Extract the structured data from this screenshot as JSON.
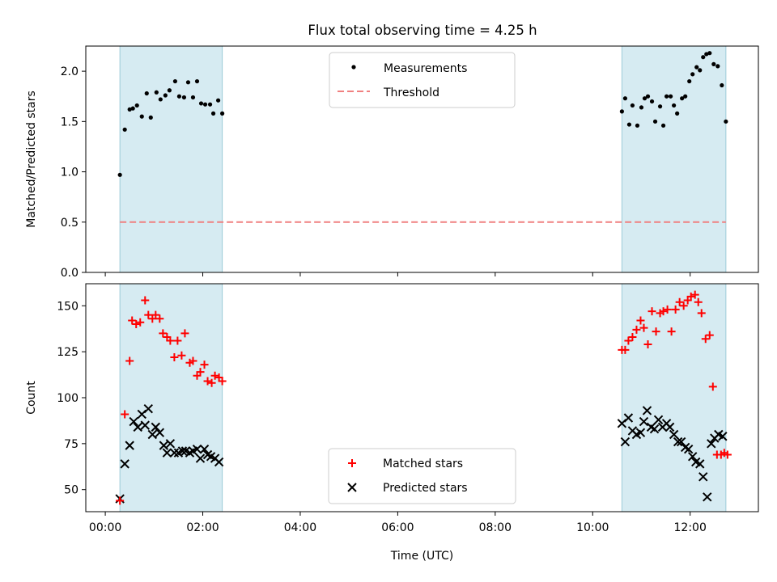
{
  "title": "Flux total observing time = 4.25 h",
  "colors": {
    "band": "#add8e6",
    "measurement": "#000000",
    "threshold": "#f08080",
    "matched": "#ff0000",
    "predicted": "#000000"
  },
  "chart_data": [
    {
      "type": "scatter",
      "panel": "top",
      "ylabel": "Matched/Predicted stars",
      "ylim": [
        0,
        2.25
      ],
      "yticks": [
        0.0,
        0.5,
        1.0,
        1.5,
        2.0
      ],
      "ytick_labels": [
        "0.0",
        "0.5",
        "1.0",
        "1.5",
        "2.0"
      ],
      "legend": {
        "placement": "upper center",
        "entries": [
          "Measurements",
          "Threshold"
        ]
      },
      "shaded_intervals": [
        [
          "00:18",
          "02:24"
        ],
        [
          "10:36",
          "12:44"
        ]
      ],
      "threshold": {
        "name": "Threshold",
        "value": 0.5,
        "x_range": [
          "00:18",
          "12:44"
        ]
      },
      "series": [
        {
          "name": "Measurements",
          "x": [
            "00:18",
            "00:24",
            "00:30",
            "00:34",
            "00:39",
            "00:45",
            "00:51",
            "00:56",
            "01:03",
            "01:08",
            "01:14",
            "01:19",
            "01:26",
            "01:31",
            "01:37",
            "01:42",
            "01:48",
            "01:53",
            "01:58",
            "02:03",
            "02:09",
            "02:13",
            "02:19",
            "02:24",
            "10:36",
            "10:40",
            "10:45",
            "10:49",
            "10:55",
            "11:00",
            "11:04",
            "11:08",
            "11:13",
            "11:17",
            "11:23",
            "11:27",
            "11:31",
            "11:36",
            "11:40",
            "11:44",
            "11:50",
            "11:54",
            "11:59",
            "12:03",
            "12:08",
            "12:12",
            "12:16",
            "12:20",
            "12:24",
            "12:29",
            "12:34",
            "12:39",
            "12:44"
          ],
          "y": [
            0.97,
            1.42,
            1.62,
            1.63,
            1.66,
            1.55,
            1.78,
            1.54,
            1.79,
            1.72,
            1.76,
            1.81,
            1.9,
            1.75,
            1.74,
            1.89,
            1.74,
            1.9,
            1.68,
            1.67,
            1.67,
            1.58,
            1.71,
            1.58,
            1.6,
            1.73,
            1.47,
            1.66,
            1.46,
            1.64,
            1.73,
            1.75,
            1.7,
            1.5,
            1.65,
            1.46,
            1.75,
            1.75,
            1.66,
            1.58,
            1.73,
            1.75,
            1.9,
            1.97,
            2.04,
            2.01,
            2.14,
            2.17,
            2.18,
            2.07,
            2.05,
            1.86,
            1.5
          ]
        }
      ]
    },
    {
      "type": "scatter",
      "panel": "bottom",
      "xlabel": "Time (UTC)",
      "ylabel": "Count",
      "xlim": [
        "-00:24",
        "13:24"
      ],
      "xticks": [
        "00:00",
        "02:00",
        "04:00",
        "06:00",
        "08:00",
        "10:00",
        "12:00"
      ],
      "ylim": [
        38,
        162
      ],
      "yticks": [
        50,
        75,
        100,
        125,
        150
      ],
      "ytick_labels": [
        "50",
        "75",
        "100",
        "125",
        "150"
      ],
      "legend": {
        "placement": "lower center",
        "entries": [
          "Matched stars",
          "Predicted stars"
        ]
      },
      "shaded_intervals": [
        [
          "00:18",
          "02:24"
        ],
        [
          "10:36",
          "12:44"
        ]
      ],
      "series": [
        {
          "name": "Matched stars",
          "x": [
            "00:18",
            "00:24",
            "00:30",
            "00:33",
            "00:38",
            "00:43",
            "00:49",
            "00:53",
            "00:58",
            "01:02",
            "01:07",
            "01:11",
            "01:16",
            "01:20",
            "01:25",
            "01:29",
            "01:34",
            "01:38",
            "01:44",
            "01:48",
            "01:53",
            "01:57",
            "02:02",
            "02:06",
            "02:11",
            "02:15",
            "02:20",
            "02:24",
            "10:36",
            "10:40",
            "10:44",
            "10:49",
            "10:54",
            "10:59",
            "11:03",
            "11:08",
            "11:13",
            "11:18",
            "11:23",
            "11:27",
            "11:32",
            "11:37",
            "11:42",
            "11:47",
            "11:52",
            "11:57",
            "12:01",
            "12:06",
            "12:10",
            "12:14",
            "12:19",
            "12:24",
            "12:28",
            "12:33",
            "12:38",
            "12:42",
            "12:46"
          ],
          "y": [
            44,
            91,
            120,
            142,
            140,
            141,
            153,
            145,
            143,
            145,
            143,
            135,
            133,
            131,
            122,
            131,
            123,
            135,
            119,
            120,
            112,
            114,
            118,
            109,
            108,
            112,
            111,
            109,
            126,
            126,
            131,
            133,
            137,
            142,
            138,
            129,
            147,
            136,
            146,
            147,
            148,
            136,
            148,
            152,
            150,
            153,
            155,
            156,
            152,
            146,
            132,
            134,
            106,
            69,
            69,
            70,
            69
          ]
        },
        {
          "name": "Predicted stars",
          "x": [
            "00:18",
            "00:24",
            "00:30",
            "00:35",
            "00:40",
            "00:45",
            "00:49",
            "00:53",
            "00:58",
            "01:02",
            "01:07",
            "01:12",
            "01:16",
            "01:20",
            "01:25",
            "01:30",
            "01:35",
            "01:39",
            "01:44",
            "01:48",
            "01:53",
            "01:57",
            "02:02",
            "02:06",
            "02:10",
            "02:15",
            "02:20",
            "10:36",
            "10:40",
            "10:44",
            "10:49",
            "10:54",
            "10:59",
            "11:03",
            "11:07",
            "11:12",
            "11:16",
            "11:21",
            "11:26",
            "11:31",
            "11:35",
            "11:40",
            "11:45",
            "11:49",
            "11:54",
            "11:58",
            "12:03",
            "12:07",
            "12:12",
            "12:16",
            "12:21",
            "12:26",
            "12:30",
            "12:35",
            "12:40"
          ],
          "y": [
            45,
            64,
            74,
            87,
            84,
            91,
            85,
            94,
            80,
            84,
            81,
            74,
            70,
            75,
            70,
            70,
            71,
            71,
            70,
            71,
            72,
            67,
            72,
            69,
            68,
            67,
            65,
            86,
            76,
            89,
            82,
            80,
            81,
            87,
            93,
            84,
            83,
            88,
            84,
            86,
            84,
            80,
            76,
            76,
            73,
            72,
            68,
            65,
            64,
            57,
            46,
            75,
            78,
            80,
            79
          ]
        }
      ]
    }
  ]
}
